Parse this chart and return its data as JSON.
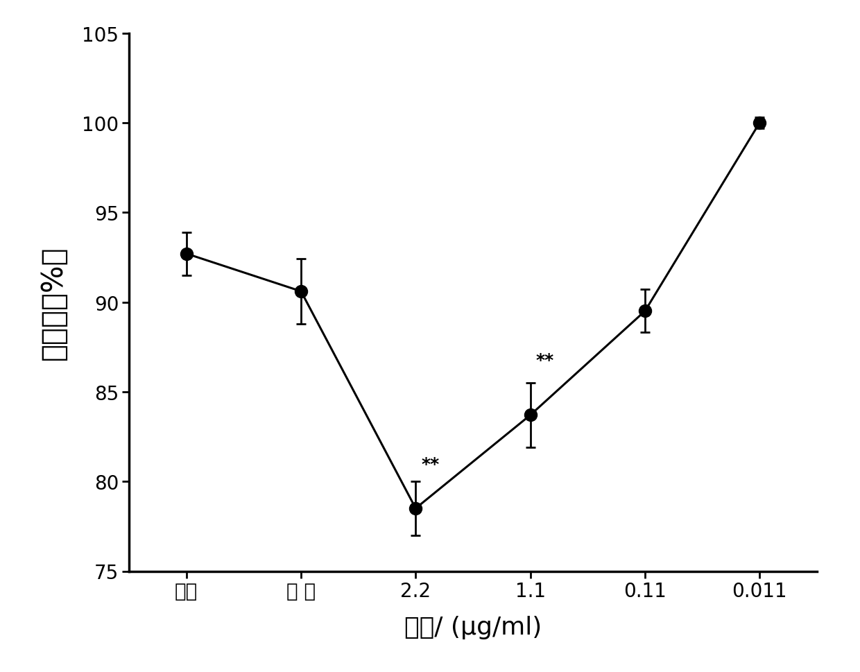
{
  "x_labels": [
    "海水",
    "溶 剂",
    "2.2",
    "1.1",
    "0.11",
    "0.011"
  ],
  "y_values": [
    92.7,
    90.6,
    78.5,
    83.7,
    89.5,
    100.0
  ],
  "y_errors": [
    1.2,
    1.8,
    1.5,
    1.8,
    1.2,
    0.3
  ],
  "significance": [
    null,
    null,
    "**",
    "**",
    null,
    null
  ],
  "sig_y_offsets": [
    0,
    0,
    0.5,
    0.8,
    0,
    0
  ],
  "ylim": [
    75,
    105
  ],
  "yticks": [
    75,
    80,
    85,
    90,
    95,
    100,
    105
  ],
  "xlabel": "浓度/ (μg/ml)",
  "ylabel": "变态率（%）",
  "line_color": "#000000",
  "marker_color": "#000000",
  "marker_size": 13,
  "linewidth": 2.2,
  "capsize": 5,
  "tick_fontsize": 20,
  "label_fontsize": 26,
  "sig_fontsize": 18,
  "ylabel_fontsize": 30,
  "background_color": "#ffffff"
}
